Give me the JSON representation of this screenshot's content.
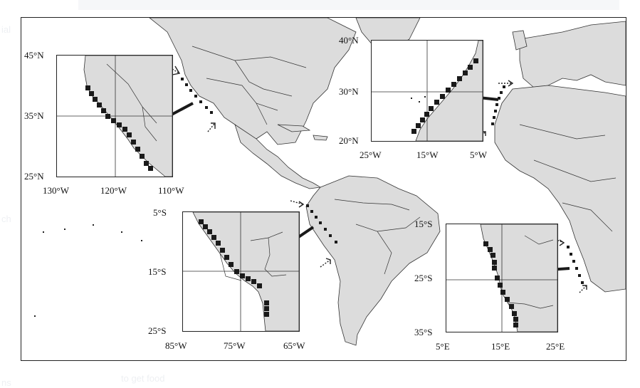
{
  "background_text": {
    "left_top": "ial",
    "left_mid": "ch",
    "bottom_left": "ns",
    "bottom_mid": "to get food"
  },
  "colors": {
    "land": "#dcdcdc",
    "ocean": "#ffffff",
    "marker": "#1a1a1a",
    "outline": "#222222"
  },
  "insets": {
    "california": {
      "lat_labels": [
        "45°N",
        "35°N",
        "25°N"
      ],
      "lon_labels": [
        "130°W",
        "120°W",
        "110°W"
      ]
    },
    "northwest_africa": {
      "lat_labels": [
        "40°N",
        "30°N",
        "20°N"
      ],
      "lon_labels": [
        "25°W",
        "15°W",
        "5°W"
      ]
    },
    "peru": {
      "lat_labels": [
        "5°S",
        "15°S",
        "25°S"
      ],
      "lon_labels": [
        "85°W",
        "75°W",
        "65°W"
      ]
    },
    "southwest_africa": {
      "lat_labels": [
        "15°S",
        "25°S",
        "35°S"
      ],
      "lon_labels": [
        "5°E",
        "15°E",
        "25°E"
      ]
    }
  },
  "legend_markers": {
    "marker_icon": "square-marker-icon",
    "arrow_icon": "pointer-arrow-icon"
  }
}
